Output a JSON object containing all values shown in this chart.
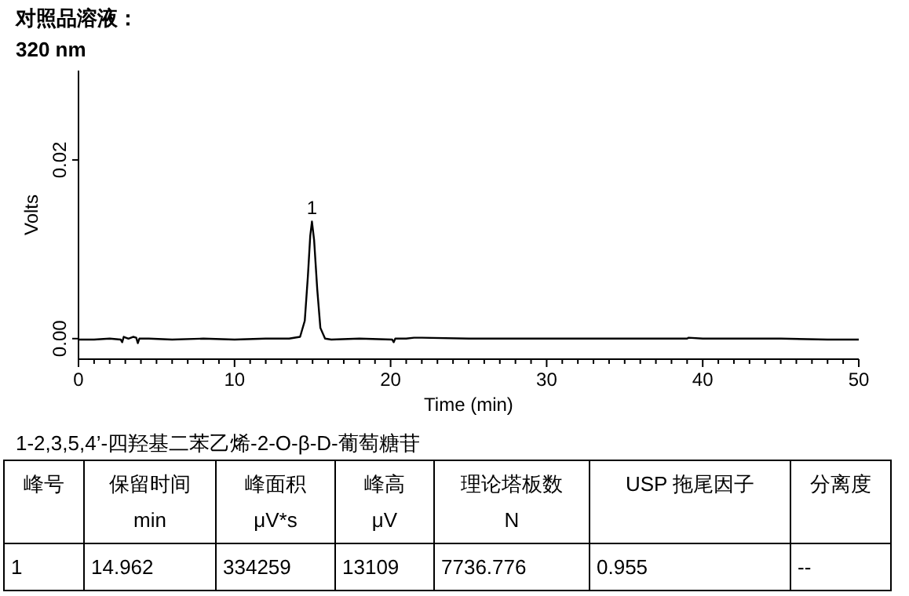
{
  "chart_data": {
    "type": "line",
    "title": "对照品溶液：",
    "subtitle": "320 nm",
    "xlabel": "Time (min)",
    "ylabel": "Volts",
    "color": "#000000",
    "x": [
      0,
      1,
      2,
      2.7,
      2.8,
      2.9,
      3.2,
      3.5,
      3.7,
      3.8,
      3.9,
      4.5,
      6,
      8,
      10,
      12,
      13.5,
      14.2,
      14.5,
      14.7,
      14.85,
      14.96,
      15.1,
      15.3,
      15.5,
      15.8,
      16.2,
      18,
      20.1,
      20.2,
      20.3,
      21,
      21.5,
      22,
      25,
      30,
      35,
      39,
      39.1,
      40,
      45,
      48,
      50
    ],
    "values": [
      -0.0001,
      -0.0001,
      0,
      -0.0001,
      -0.0004,
      0.0002,
      0,
      0.0002,
      0.0001,
      -0.0005,
      0,
      0,
      -0.0001,
      0,
      -0.0001,
      0,
      0,
      0.0002,
      0.002,
      0.007,
      0.0115,
      0.0131,
      0.011,
      0.0055,
      0.0012,
      0,
      -0.0001,
      0,
      -0.0001,
      -0.0004,
      0,
      0,
      0.0001,
      0.0001,
      0,
      0,
      0,
      0,
      0.0001,
      0,
      0,
      -0.0001,
      -0.0001
    ],
    "xlim": [
      0,
      50
    ],
    "ylim": [
      -0.0023,
      0.03
    ],
    "xticks": [
      0,
      {
        "value": 1,
        "label": null
      },
      {
        "value": 2,
        "label": null
      },
      {
        "value": 3,
        "label": null
      },
      {
        "value": 4,
        "label": null
      },
      {
        "value": 5,
        "label": null
      },
      {
        "value": 6,
        "label": null
      },
      {
        "value": 7,
        "label": null
      },
      {
        "value": 8,
        "label": null
      },
      {
        "value": 9,
        "label": null
      },
      10,
      {
        "value": 11,
        "label": null
      },
      {
        "value": 12,
        "label": null
      },
      {
        "value": 13,
        "label": null
      },
      {
        "value": 14,
        "label": null
      },
      {
        "value": 15,
        "label": null
      },
      {
        "value": 16,
        "label": null
      },
      {
        "value": 17,
        "label": null
      },
      {
        "value": 18,
        "label": null
      },
      {
        "value": 19,
        "label": null
      },
      20,
      {
        "value": 21,
        "label": null
      },
      {
        "value": 22,
        "label": null
      },
      {
        "value": 23,
        "label": null
      },
      {
        "value": 24,
        "label": null
      },
      {
        "value": 25,
        "label": null
      },
      {
        "value": 26,
        "label": null
      },
      {
        "value": 27,
        "label": null
      },
      {
        "value": 28,
        "label": null
      },
      {
        "value": 29,
        "label": null
      },
      30,
      {
        "value": 31,
        "label": null
      },
      {
        "value": 32,
        "label": null
      },
      {
        "value": 33,
        "label": null
      },
      {
        "value": 34,
        "label": null
      },
      {
        "value": 35,
        "label": null
      },
      {
        "value": 36,
        "label": null
      },
      {
        "value": 37,
        "label": null
      },
      {
        "value": 38,
        "label": null
      },
      {
        "value": 39,
        "label": null
      },
      40,
      {
        "value": 41,
        "label": null
      },
      {
        "value": 42,
        "label": null
      },
      {
        "value": 43,
        "label": null
      },
      {
        "value": 44,
        "label": null
      },
      {
        "value": 45,
        "label": null
      },
      {
        "value": 46,
        "label": null
      },
      {
        "value": 47,
        "label": null
      },
      {
        "value": 48,
        "label": null
      },
      {
        "value": 49,
        "label": null
      },
      50
    ],
    "yticks": [
      {
        "value": 0,
        "label": "0.00"
      },
      {
        "value": 0.02,
        "label": "0.02"
      }
    ],
    "annotations": [
      {
        "text": "1",
        "x": 14.96,
        "y": 0.0131
      },
      "1-2,3,5,4’-四羟基二苯乙烯-2-O-β-D-葡萄糖苷",
      "峰号",
      "保留时间\nmin",
      "峰面积\nμV*s",
      "峰高\nμV",
      "理论塔板数\nN",
      "USP 拖尾因子",
      "分离度",
      "1",
      "14.962",
      "334259",
      "13109",
      "7736.776",
      "0.955",
      "--"
    ]
  }
}
